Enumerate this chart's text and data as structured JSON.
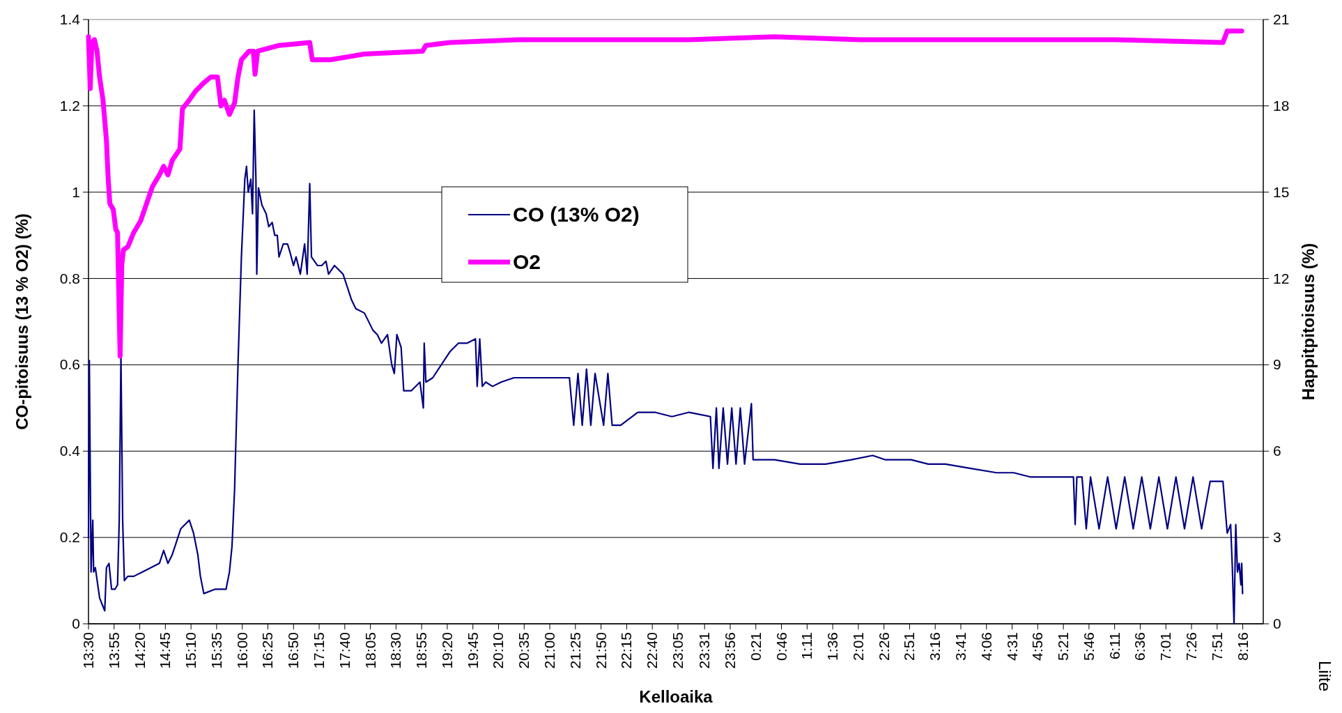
{
  "chart_data": {
    "type": "line",
    "xlabel": "Kelloaika",
    "ylabel": "CO-pitoisuus (13 % O2) (%)",
    "y2label": "Happitpitoisuus (%)",
    "annotations": [
      "Liite"
    ],
    "xlim": [
      "2000-01-01T13:30",
      "2000-01-02T08:36"
    ],
    "xticks": [
      {
        "value": "2000-01-01T13:30",
        "label": "13:30"
      },
      {
        "value": "2000-01-01T13:55",
        "label": "13:55"
      },
      {
        "value": "2000-01-01T14:20",
        "label": "14:20"
      },
      {
        "value": "2000-01-01T14:45",
        "label": "14:45"
      },
      {
        "value": "2000-01-01T15:10",
        "label": "15:10"
      },
      {
        "value": "2000-01-01T15:35",
        "label": "15:35"
      },
      {
        "value": "2000-01-01T16:00",
        "label": "16:00"
      },
      {
        "value": "2000-01-01T16:25",
        "label": "16:25"
      },
      {
        "value": "2000-01-01T16:50",
        "label": "16:50"
      },
      {
        "value": "2000-01-01T17:15",
        "label": "17:15"
      },
      {
        "value": "2000-01-01T17:40",
        "label": "17:40"
      },
      {
        "value": "2000-01-01T18:05",
        "label": "18:05"
      },
      {
        "value": "2000-01-01T18:30",
        "label": "18:30"
      },
      {
        "value": "2000-01-01T18:55",
        "label": "18:55"
      },
      {
        "value": "2000-01-01T19:20",
        "label": "19:20"
      },
      {
        "value": "2000-01-01T19:45",
        "label": "19:45"
      },
      {
        "value": "2000-01-01T20:10",
        "label": "20:10"
      },
      {
        "value": "2000-01-01T20:35",
        "label": "20:35"
      },
      {
        "value": "2000-01-01T21:00",
        "label": "21:00"
      },
      {
        "value": "2000-01-01T21:25",
        "label": "21:25"
      },
      {
        "value": "2000-01-01T21:50",
        "label": "21:50"
      },
      {
        "value": "2000-01-01T22:15",
        "label": "22:15"
      },
      {
        "value": "2000-01-01T22:40",
        "label": "22:40"
      },
      {
        "value": "2000-01-01T23:05",
        "label": "23:05"
      },
      {
        "value": "2000-01-01T23:31",
        "label": "23:31"
      },
      {
        "value": "2000-01-01T23:56",
        "label": "23:56"
      },
      {
        "value": "2000-01-02T00:21",
        "label": "0:21"
      },
      {
        "value": "2000-01-02T00:46",
        "label": "0:46"
      },
      {
        "value": "2000-01-02T01:11",
        "label": "1:11"
      },
      {
        "value": "2000-01-02T01:36",
        "label": "1:36"
      },
      {
        "value": "2000-01-02T02:01",
        "label": "2:01"
      },
      {
        "value": "2000-01-02T02:26",
        "label": "2:26"
      },
      {
        "value": "2000-01-02T02:51",
        "label": "2:51"
      },
      {
        "value": "2000-01-02T03:16",
        "label": "3:16"
      },
      {
        "value": "2000-01-02T03:41",
        "label": "3:41"
      },
      {
        "value": "2000-01-02T04:06",
        "label": "4:06"
      },
      {
        "value": "2000-01-02T04:31",
        "label": "4:31"
      },
      {
        "value": "2000-01-02T04:56",
        "label": "4:56"
      },
      {
        "value": "2000-01-02T05:21",
        "label": "5:21"
      },
      {
        "value": "2000-01-02T05:46",
        "label": "5:46"
      },
      {
        "value": "2000-01-02T06:11",
        "label": "6:11"
      },
      {
        "value": "2000-01-02T06:36",
        "label": "6:36"
      },
      {
        "value": "2000-01-02T07:01",
        "label": "7:01"
      },
      {
        "value": "2000-01-02T07:26",
        "label": "7:26"
      },
      {
        "value": "2000-01-02T07:51",
        "label": "7:51"
      },
      {
        "value": "2000-01-02T08:16",
        "label": "8:16"
      }
    ],
    "ylim": [
      0,
      1.4
    ],
    "yticks": [
      0,
      0.2,
      0.4,
      0.6,
      0.8,
      1,
      1.2,
      1.4
    ],
    "y2lim": [
      0,
      21
    ],
    "y2ticks": [
      0,
      3,
      6,
      9,
      12,
      15,
      18,
      21
    ],
    "grid": "y",
    "legend": "center",
    "marker": "none",
    "line_style": "solid",
    "series": [
      {
        "name": "CO (13% O2)",
        "color": "#000080",
        "x": [
          "2000-01-01T13:30:00",
          "2000-01-01T13:30:50",
          "2000-01-01T13:32:30",
          "2000-01-01T13:34:10",
          "2000-01-01T13:35:00",
          "2000-01-01T13:36:40",
          "2000-01-01T13:40:50",
          "2000-01-01T13:44:10",
          "2000-01-01T13:45:50",
          "2000-01-01T13:47:30",
          "2000-01-01T13:50:00",
          "2000-01-01T13:52:30",
          "2000-01-01T13:55:50",
          "2000-01-01T13:58:20",
          "2000-01-01T14:00:00",
          "2000-01-01T14:01:40",
          "2000-01-01T14:03:20",
          "2000-01-01T14:05:00",
          "2000-01-01T14:08:20",
          "2000-01-01T14:14:10",
          "2000-01-01T14:22:30",
          "2000-01-01T14:30:50",
          "2000-01-01T14:39:10",
          "2000-01-01T14:43:20",
          "2000-01-01T14:47:30",
          "2000-01-01T14:51:40",
          "2000-01-01T14:55:50",
          "2000-01-01T15:00:00",
          "2000-01-01T15:04:10",
          "2000-01-01T15:08:20",
          "2000-01-01T15:12:30",
          "2000-01-01T15:16:40",
          "2000-01-01T15:19:10",
          "2000-01-01T15:22:30",
          "2000-01-01T15:33:20",
          "2000-01-01T15:44:10",
          "2000-01-01T15:47:30",
          "2000-01-01T15:50:00",
          "2000-01-01T15:52:30",
          "2000-01-01T15:55:50",
          "2000-01-01T15:59:10",
          "2000-01-01T16:02:30",
          "2000-01-01T16:04:10",
          "2000-01-01T16:05:50",
          "2000-01-01T16:08:20",
          "2000-01-01T16:10:00",
          "2000-01-01T16:11:40",
          "2000-01-01T16:13:20",
          "2000-01-01T16:14:10",
          "2000-01-01T16:15:50",
          "2000-01-01T16:19:10",
          "2000-01-01T16:23:20",
          "2000-01-01T16:25:50",
          "2000-01-01T16:29:10",
          "2000-01-01T16:31:40",
          "2000-01-01T16:34:10",
          "2000-01-01T16:35:50",
          "2000-01-01T16:40:00",
          "2000-01-01T16:44:10",
          "2000-01-01T16:46:40",
          "2000-01-01T16:50:00",
          "2000-01-01T16:52:30",
          "2000-01-01T16:56:40",
          "2000-01-01T17:00:50",
          "2000-01-01T17:03:20",
          "2000-01-01T17:05:50",
          "2000-01-01T17:07:30",
          "2000-01-01T17:13:20",
          "2000-01-01T17:17:30",
          "2000-01-01T17:21:40",
          "2000-01-01T17:24:10",
          "2000-01-01T17:30:00",
          "2000-01-01T17:38:20",
          "2000-01-01T17:42:30",
          "2000-01-01T17:46:40",
          "2000-01-01T17:50:50",
          "2000-01-01T17:59:10",
          "2000-01-01T18:07:30",
          "2000-01-01T18:11:40",
          "2000-01-01T18:15:50",
          "2000-01-01T18:21:40",
          "2000-01-01T18:25:50",
          "2000-01-01T18:28:20",
          "2000-01-01T18:30:50",
          "2000-01-01T18:35:00",
          "2000-01-01T18:37:30",
          "2000-01-01T18:45:00",
          "2000-01-01T18:53:20",
          "2000-01-01T18:56:40",
          "2000-01-01T18:57:30",
          "2000-01-01T18:59:10",
          "2000-01-01T19:05:50",
          "2000-01-01T19:14:10",
          "2000-01-01T19:22:30",
          "2000-01-01T19:30:50",
          "2000-01-01T19:39:10",
          "2000-01-01T19:47:30",
          "2000-01-01T19:49:10",
          "2000-01-01T19:51:40",
          "2000-01-01T19:54:10",
          "2000-01-01T19:57:30",
          "2000-01-01T20:04:10",
          "2000-01-01T20:12:30",
          "2000-01-01T20:25:00",
          "2000-01-01T20:45:50",
          "2000-01-01T21:10:50",
          "2000-01-01T21:19:10",
          "2000-01-01T21:23:20",
          "2000-01-01T21:27:30",
          "2000-01-01T21:31:40",
          "2000-01-01T21:35:50",
          "2000-01-01T21:40:00",
          "2000-01-01T21:44:10",
          "2000-01-01T21:52:30",
          "2000-01-01T21:56:40",
          "2000-01-01T22:00:50",
          "2000-01-01T22:09:10",
          "2000-01-01T22:25:50",
          "2000-01-01T22:42:30",
          "2000-01-01T22:59:10",
          "2000-01-01T23:15:50",
          "2000-01-01T23:36:40",
          "2000-01-01T23:39:10",
          "2000-01-01T23:42:30",
          "2000-01-01T23:45:00",
          "2000-01-01T23:49:10",
          "2000-01-01T23:53:20",
          "2000-01-01T23:57:30",
          "2000-01-02T00:01:40",
          "2000-01-02T00:05:50",
          "2000-01-02T00:10:00",
          "2000-01-02T00:16:40",
          "2000-01-02T00:18:20",
          "2000-01-02T00:39:10",
          "2000-01-02T01:04:10",
          "2000-01-02T01:29:10",
          "2000-01-02T01:54:10",
          "2000-01-02T02:15:00",
          "2000-01-02T02:27:30",
          "2000-01-02T02:52:30",
          "2000-01-02T03:09:10",
          "2000-01-02T03:25:50",
          "2000-01-02T03:50:50",
          "2000-01-02T04:15:50",
          "2000-01-02T04:32:30",
          "2000-01-02T04:49:10",
          "2000-01-02T05:14:10",
          "2000-01-02T05:30:50",
          "2000-01-02T05:32:30",
          "2000-01-02T05:34:10",
          "2000-01-02T05:39:10",
          "2000-01-02T05:43:20",
          "2000-01-02T05:47:30",
          "2000-01-02T05:55:50",
          "2000-01-02T06:04:10",
          "2000-01-02T06:12:30",
          "2000-01-02T06:20:50",
          "2000-01-02T06:29:10",
          "2000-01-02T06:37:30",
          "2000-01-02T06:45:50",
          "2000-01-02T06:54:10",
          "2000-01-02T07:02:30",
          "2000-01-02T07:10:50",
          "2000-01-02T07:19:10",
          "2000-01-02T07:27:30",
          "2000-01-02T07:35:50",
          "2000-01-02T07:44:10",
          "2000-01-02T07:56:40",
          "2000-01-02T08:00:50",
          "2000-01-02T08:04:10",
          "2000-01-02T08:05:50",
          "2000-01-02T08:07:30",
          "2000-01-02T08:09:10",
          "2000-01-02T08:10:50",
          "2000-01-02T08:12:30",
          "2000-01-02T08:14:10",
          "2000-01-02T08:15:00",
          "2000-01-02T08:15:50"
        ],
        "values": [
          0.2,
          0.61,
          0.12,
          0.24,
          0.12,
          0.13,
          0.06,
          0.04,
          0.03,
          0.13,
          0.14,
          0.08,
          0.08,
          0.09,
          0.24,
          0.62,
          0.24,
          0.1,
          0.11,
          0.11,
          0.12,
          0.13,
          0.14,
          0.17,
          0.14,
          0.16,
          0.19,
          0.22,
          0.23,
          0.24,
          0.21,
          0.16,
          0.11,
          0.07,
          0.08,
          0.08,
          0.12,
          0.18,
          0.31,
          0.6,
          0.85,
          1.03,
          1.06,
          1.0,
          1.03,
          0.95,
          1.19,
          1.03,
          0.81,
          1.01,
          0.97,
          0.95,
          0.92,
          0.93,
          0.9,
          0.9,
          0.85,
          0.88,
          0.88,
          0.86,
          0.83,
          0.85,
          0.81,
          0.88,
          0.81,
          1.02,
          0.85,
          0.83,
          0.83,
          0.84,
          0.81,
          0.83,
          0.81,
          0.78,
          0.75,
          0.73,
          0.72,
          0.68,
          0.67,
          0.65,
          0.67,
          0.6,
          0.58,
          0.67,
          0.64,
          0.54,
          0.54,
          0.56,
          0.5,
          0.65,
          0.56,
          0.57,
          0.6,
          0.63,
          0.65,
          0.65,
          0.66,
          0.55,
          0.66,
          0.55,
          0.56,
          0.55,
          0.56,
          0.57,
          0.57,
          0.57,
          0.57,
          0.46,
          0.58,
          0.46,
          0.59,
          0.46,
          0.58,
          0.46,
          0.58,
          0.46,
          0.46,
          0.49,
          0.49,
          0.48,
          0.49,
          0.48,
          0.36,
          0.5,
          0.36,
          0.5,
          0.37,
          0.5,
          0.37,
          0.5,
          0.37,
          0.51,
          0.38,
          0.38,
          0.37,
          0.37,
          0.38,
          0.39,
          0.38,
          0.38,
          0.37,
          0.37,
          0.36,
          0.35,
          0.35,
          0.34,
          0.34,
          0.34,
          0.23,
          0.34,
          0.34,
          0.22,
          0.34,
          0.22,
          0.34,
          0.22,
          0.34,
          0.22,
          0.34,
          0.22,
          0.34,
          0.22,
          0.34,
          0.22,
          0.34,
          0.22,
          0.33,
          0.33,
          0.21,
          0.23,
          0.13,
          0,
          0.23,
          0.12,
          0.14,
          0.09,
          0.14,
          0.07
        ]
      },
      {
        "name": "O2",
        "color": "#ff00ff",
        "axis": "y2",
        "x": [
          "2000-01-01T13:30:00",
          "2000-01-01T13:31:40",
          "2000-01-01T13:33:20",
          "2000-01-01T13:35:50",
          "2000-01-01T13:38:20",
          "2000-01-01T13:40:50",
          "2000-01-01T13:44:10",
          "2000-01-01T13:47:30",
          "2000-01-01T13:49:10",
          "2000-01-01T13:50:50",
          "2000-01-01T13:54:10",
          "2000-01-01T13:56:40",
          "2000-01-01T13:58:20",
          "2000-01-01T14:00:50",
          "2000-01-01T14:02:30",
          "2000-01-01T14:04:10",
          "2000-01-01T14:08:20",
          "2000-01-01T14:14:10",
          "2000-01-01T14:20:50",
          "2000-01-01T14:26:40",
          "2000-01-01T14:32:30",
          "2000-01-01T14:39:10",
          "2000-01-01T14:43:20",
          "2000-01-01T14:47:30",
          "2000-01-01T14:51:40",
          "2000-01-01T14:59:10",
          "2000-01-01T15:01:40",
          "2000-01-01T15:08:20",
          "2000-01-01T15:14:10",
          "2000-01-01T15:22:30",
          "2000-01-01T15:29:10",
          "2000-01-01T15:35:50",
          "2000-01-01T15:39:10",
          "2000-01-01T15:42:30",
          "2000-01-01T15:47:30",
          "2000-01-01T15:52:30",
          "2000-01-01T15:55:50",
          "2000-01-01T15:59:10",
          "2000-01-01T16:06:40",
          "2000-01-01T16:10:50",
          "2000-01-01T16:12:30",
          "2000-01-01T16:15:00",
          "2000-01-01T16:35:50",
          "2000-01-01T17:05:50",
          "2000-01-01T17:08:20",
          "2000-01-01T17:25:50",
          "2000-01-01T17:59:10",
          "2000-01-01T18:55:50",
          "2000-01-01T18:59:10",
          "2000-01-01T19:22:30",
          "2000-01-01T20:29:10",
          "2000-01-01T21:52:30",
          "2000-01-01T23:15:50",
          "2000-01-02T00:39:10",
          "2000-01-02T02:02:30",
          "2000-01-02T03:25:50",
          "2000-01-02T04:49:10",
          "2000-01-02T06:12:30",
          "2000-01-02T07:56:40",
          "2000-01-02T08:00:50",
          "2000-01-02T08:15:00"
        ],
        "values": [
          20.4,
          18.6,
          20.2,
          20.3,
          19.9,
          19.0,
          18.2,
          16.8,
          15.5,
          14.6,
          14.4,
          13.7,
          13.6,
          9.3,
          12.5,
          13.0,
          13.1,
          13.6,
          14.0,
          14.6,
          15.2,
          15.6,
          15.9,
          15.6,
          16.1,
          16.5,
          17.9,
          18.2,
          18.5,
          18.8,
          19.0,
          19.0,
          18.0,
          18.2,
          17.7,
          18.1,
          19.0,
          19.6,
          19.9,
          19.9,
          19.1,
          19.9,
          20.1,
          20.2,
          19.6,
          19.6,
          19.8,
          19.9,
          20.1,
          20.2,
          20.3,
          20.3,
          20.3,
          20.4,
          20.3,
          20.3,
          20.3,
          20.3,
          20.2,
          20.6,
          20.6
        ]
      }
    ]
  }
}
